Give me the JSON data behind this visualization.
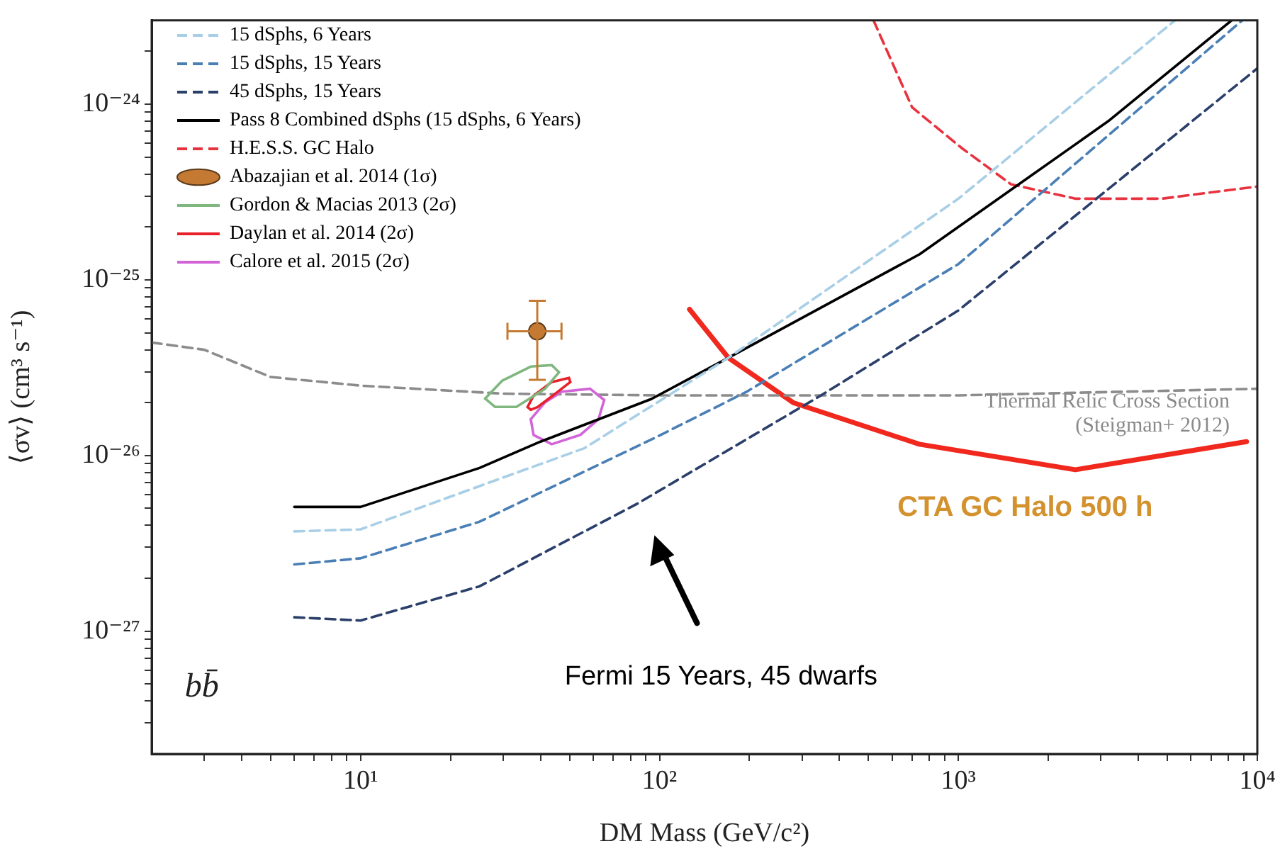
{
  "chart_data": {
    "type": "line",
    "xlabel": "DM Mass (GeV/c²)",
    "ylabel": "⟨σv⟩ (cm³ s⁻¹)",
    "log": "xy",
    "xlim": [
      2,
      10000
    ],
    "ylim": [
      2e-28,
      3e-24
    ],
    "xticks": [
      {
        "value": 3,
        "label": null
      },
      {
        "value": 4,
        "label": null
      },
      {
        "value": 5,
        "label": null
      },
      {
        "value": 6,
        "label": null
      },
      {
        "value": 7,
        "label": null
      },
      {
        "value": 8,
        "label": null
      },
      {
        "value": 9,
        "label": null
      },
      {
        "value": 10,
        "label": "10¹"
      },
      {
        "value": 20,
        "label": null
      },
      {
        "value": 30,
        "label": null
      },
      {
        "value": 40,
        "label": null
      },
      {
        "value": 50,
        "label": null
      },
      {
        "value": 60,
        "label": null
      },
      {
        "value": 70,
        "label": null
      },
      {
        "value": 80,
        "label": null
      },
      {
        "value": 90,
        "label": null
      },
      {
        "value": 100,
        "label": "10²"
      },
      {
        "value": 200,
        "label": null
      },
      {
        "value": 300,
        "label": null
      },
      {
        "value": 400,
        "label": null
      },
      {
        "value": 500,
        "label": null
      },
      {
        "value": 600,
        "label": null
      },
      {
        "value": 700,
        "label": null
      },
      {
        "value": 800,
        "label": null
      },
      {
        "value": 900,
        "label": null
      },
      {
        "value": 1000,
        "label": "10³"
      },
      {
        "value": 2000,
        "label": null
      },
      {
        "value": 3000,
        "label": null
      },
      {
        "value": 4000,
        "label": null
      },
      {
        "value": 5000,
        "label": null
      },
      {
        "value": 6000,
        "label": null
      },
      {
        "value": 7000,
        "label": null
      },
      {
        "value": 8000,
        "label": null
      },
      {
        "value": 9000,
        "label": null
      },
      {
        "value": 10000,
        "label": "10⁴"
      }
    ],
    "yticks": [
      {
        "value": 3e-28,
        "label": null
      },
      {
        "value": 4e-28,
        "label": null
      },
      {
        "value": 5e-28,
        "label": null
      },
      {
        "value": 6e-28,
        "label": null
      },
      {
        "value": 7e-28,
        "label": null
      },
      {
        "value": 8e-28,
        "label": null
      },
      {
        "value": 9e-28,
        "label": null
      },
      {
        "value": 1e-27,
        "label": "10⁻²⁷"
      },
      {
        "value": 2e-27,
        "label": null
      },
      {
        "value": 3e-27,
        "label": null
      },
      {
        "value": 4e-27,
        "label": null
      },
      {
        "value": 5e-27,
        "label": null
      },
      {
        "value": 6e-27,
        "label": null
      },
      {
        "value": 7e-27,
        "label": null
      },
      {
        "value": 8e-27,
        "label": null
      },
      {
        "value": 9e-27,
        "label": null
      },
      {
        "value": 1e-26,
        "label": "10⁻²⁶"
      },
      {
        "value": 2e-26,
        "label": null
      },
      {
        "value": 3e-26,
        "label": null
      },
      {
        "value": 4e-26,
        "label": null
      },
      {
        "value": 5e-26,
        "label": null
      },
      {
        "value": 6e-26,
        "label": null
      },
      {
        "value": 7e-26,
        "label": null
      },
      {
        "value": 8e-26,
        "label": null
      },
      {
        "value": 9e-26,
        "label": null
      },
      {
        "value": 1e-25,
        "label": "10⁻²⁵"
      },
      {
        "value": 2e-25,
        "label": null
      },
      {
        "value": 3e-25,
        "label": null
      },
      {
        "value": 4e-25,
        "label": null
      },
      {
        "value": 5e-25,
        "label": null
      },
      {
        "value": 6e-25,
        "label": null
      },
      {
        "value": 7e-25,
        "label": null
      },
      {
        "value": 8e-25,
        "label": null
      },
      {
        "value": 9e-25,
        "label": null
      },
      {
        "value": 1e-24,
        "label": "10⁻²⁴"
      },
      {
        "value": 2e-24,
        "label": null
      }
    ],
    "grid": false,
    "legend": "top left",
    "series": [
      {
        "name": "15 dSphs, 6 Years",
        "color": "#a8cfe6",
        "line_style": "dashed",
        "x": [
          6,
          10,
          25,
          56,
          170,
          1000,
          5300
        ],
        "values": [
          3.7e-27,
          3.8e-27,
          6.7e-27,
          1.1e-26,
          3.6e-26,
          2.9e-25,
          3e-24
        ]
      },
      {
        "name": "15 dSphs, 15 Years",
        "color": "#4a7fb5",
        "line_style": "dashed",
        "x": [
          6,
          10,
          25,
          100,
          195,
          1000,
          8900
        ],
        "values": [
          2.4e-27,
          2.6e-27,
          4.2e-27,
          1.3e-26,
          2.3e-26,
          1.23e-25,
          3e-24
        ]
      },
      {
        "name": "45 dSphs, 15 Years",
        "color": "#2b3f6b",
        "line_style": "dashed",
        "x": [
          6,
          10,
          25,
          84,
          347,
          1000,
          10000
        ],
        "values": [
          1.2e-27,
          1.15e-27,
          1.8e-27,
          5.3e-27,
          2.2e-26,
          6.7e-26,
          1.6e-24
        ]
      },
      {
        "name": "Pass 8 Combined dSphs (15 dSphs, 6 Years)",
        "color": "#000000",
        "line_style": "solid",
        "x": [
          6,
          10,
          25,
          40,
          94,
          170,
          742,
          3170,
          8200
        ],
        "values": [
          5.1e-27,
          5.1e-27,
          8.5e-27,
          1.2e-26,
          2.1e-26,
          3.6e-26,
          1.4e-25,
          8e-25,
          3e-24
        ]
      },
      {
        "name": "H.E.S.S. GC Halo",
        "color": "#e8333f",
        "line_style": "dashed",
        "x": [
          520,
          700,
          1030,
          1500,
          2460,
          4800,
          10000
        ],
        "values": [
          3e-24,
          9.6e-25,
          5.6e-25,
          3.5e-25,
          2.9e-25,
          2.9e-25,
          3.4e-25
        ]
      },
      {
        "name": "Abazajian et al. 2014 (1σ)",
        "type": "scatter",
        "marker": "circle",
        "color": "#c47a32",
        "x": [
          39
        ],
        "values": [
          5.1e-26
        ],
        "errors": [
          [
            2.7e-26,
            7.6e-26
          ]
        ],
        "xerrors": [
          [
            31,
            47
          ]
        ]
      },
      {
        "name": "Gordon & Macias 2013 (2σ)",
        "color": "#7fb77e",
        "line_style": "solid",
        "x": [
          26.1,
          29.8,
          37.1,
          43.6,
          46.1
        ],
        "values": [
          2.11e-26,
          2.67e-26,
          3.21e-26,
          3.27e-26,
          2.98e-26
        ]
      },
      {
        "color": "#7fb77e",
        "line_style": "solid",
        "x": [
          26.1,
          28.2,
          33.2,
          41.3,
          46.1
        ],
        "values": [
          2.11e-26,
          1.89e-26,
          1.89e-26,
          2.39e-26,
          2.98e-26
        ]
      },
      {
        "name": "Daylan et al. 2014 (2σ)",
        "color": "#e8202a",
        "line_style": "solid",
        "x": [
          36.2,
          37.9,
          43.6,
          49.8,
          50.3
        ],
        "values": [
          1.89e-26,
          2.19e-26,
          2.62e-26,
          2.77e-26,
          2.62e-26
        ]
      },
      {
        "color": "#e8202a",
        "line_style": "solid",
        "x": [
          36.2,
          37.1,
          39.1,
          45.1,
          50.3
        ],
        "values": [
          1.89e-26,
          1.82e-26,
          1.89e-26,
          2.27e-26,
          2.62e-26
        ]
      },
      {
        "name": "Calore et al. 2015 (2σ)",
        "color": "#d264d8",
        "line_style": "solid",
        "x": [
          37.1,
          41.3,
          47.1,
          58.6,
          65.3
        ],
        "values": [
          1.61e-26,
          2e-26,
          2.31e-26,
          2.4e-26,
          2.07e-26
        ]
      },
      {
        "color": "#d264d8",
        "line_style": "solid",
        "x": [
          37.1,
          37.9,
          43.6,
          54.3,
          62.5,
          65.3
        ],
        "values": [
          1.61e-26,
          1.31e-26,
          1.16e-26,
          1.31e-26,
          1.61e-26,
          2.07e-26
        ]
      },
      {
        "color": "#8c8c8c",
        "line_style": "dashed",
        "x": [
          2,
          3,
          5,
          10,
          30,
          100,
          1000,
          10000
        ],
        "values": [
          4.4e-26,
          4e-26,
          2.8e-26,
          2.5e-26,
          2.25e-26,
          2.2e-26,
          2.2e-26,
          2.4e-26
        ]
      },
      {
        "color": "#f0281e",
        "line_style": "solid",
        "x": [
          126,
          170,
          280,
          740,
          2460,
          9200
        ],
        "values": [
          6.8e-26,
          3.6e-26,
          2e-26,
          1.16e-26,
          8.3e-27,
          1.2e-26
        ]
      }
    ],
    "annotations": [
      "Thermal Relic Cross Section\n(Steigman+ 2012)",
      "CTA GC Halo 500 h",
      "Fermi 15 Years, 45 dwarfs",
      "bb̄"
    ]
  }
}
